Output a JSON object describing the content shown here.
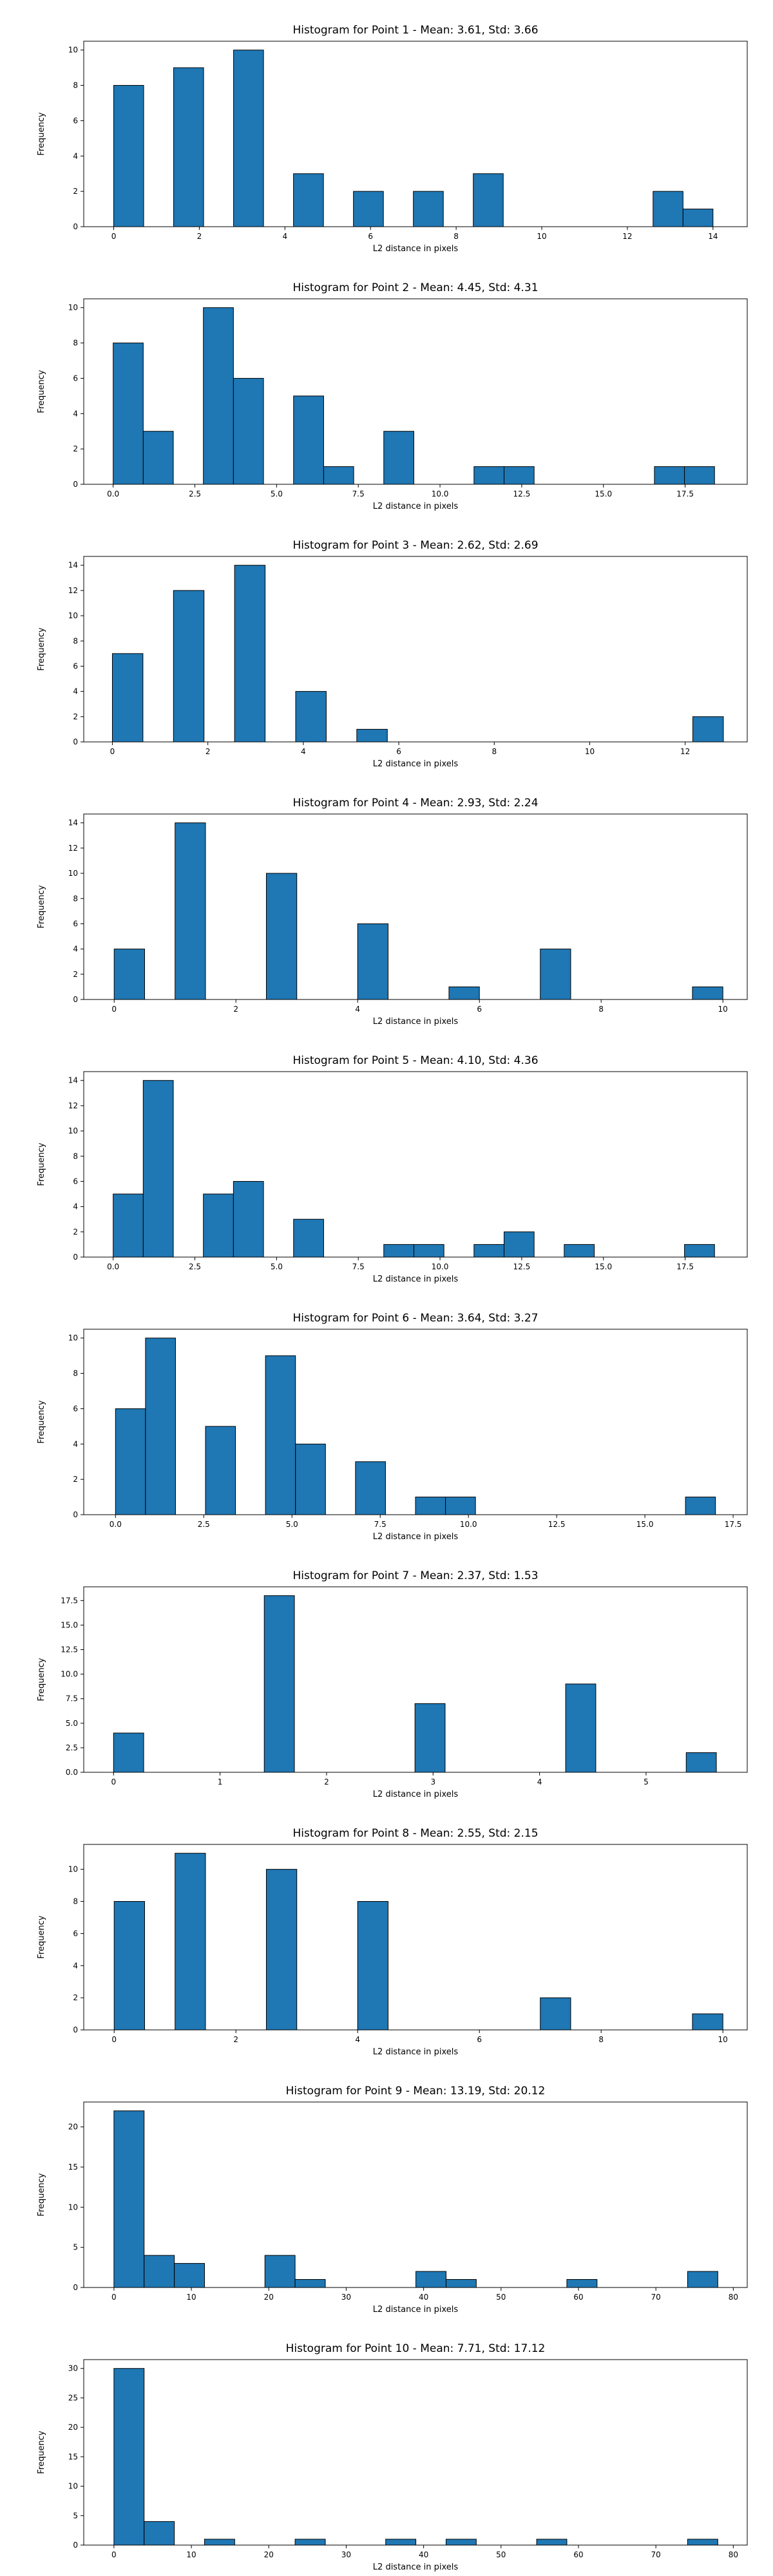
{
  "chart_data": [
    {
      "type": "bar",
      "title": "Histogram for Point 1 - Mean: 3.61, Std: 3.66",
      "xlabel": "L2 distance in pixels",
      "ylabel": "Frequency",
      "xlim": [
        -0.7,
        14.8
      ],
      "ylim": [
        0,
        10.5
      ],
      "xticks": [
        0,
        2,
        4,
        6,
        8,
        10,
        12,
        14
      ],
      "xtick_labels": [
        "0",
        "2",
        "4",
        "6",
        "8",
        "10",
        "12",
        "14"
      ],
      "yticks": [
        0,
        2,
        4,
        6,
        8,
        10
      ],
      "ytick_labels": [
        "0",
        "2",
        "4",
        "6",
        "8",
        "10"
      ],
      "bins": [
        {
          "x0": 0.0,
          "x1": 0.7,
          "count": 8
        },
        {
          "x0": 1.4,
          "x1": 2.1,
          "count": 9
        },
        {
          "x0": 2.8,
          "x1": 3.5,
          "count": 10
        },
        {
          "x0": 4.2,
          "x1": 4.9,
          "count": 3
        },
        {
          "x0": 5.6,
          "x1": 6.3,
          "count": 2
        },
        {
          "x0": 7.0,
          "x1": 7.7,
          "count": 2
        },
        {
          "x0": 8.4,
          "x1": 9.1,
          "count": 3
        },
        {
          "x0": 12.6,
          "x1": 13.3,
          "count": 2
        },
        {
          "x0": 13.3,
          "x1": 14.0,
          "count": 1
        }
      ]
    },
    {
      "type": "bar",
      "title": "Histogram for Point 2 - Mean: 4.45, Std: 4.31",
      "xlabel": "L2 distance in pixels",
      "ylabel": "Frequency",
      "xlim": [
        -0.9,
        19.4
      ],
      "ylim": [
        0,
        10.5
      ],
      "xticks": [
        0,
        2.5,
        5,
        7.5,
        10,
        12.5,
        15,
        17.5
      ],
      "xtick_labels": [
        "0.0",
        "2.5",
        "5.0",
        "7.5",
        "10.0",
        "12.5",
        "15.0",
        "17.5"
      ],
      "yticks": [
        0,
        2,
        4,
        6,
        8,
        10
      ],
      "ytick_labels": [
        "0",
        "2",
        "4",
        "6",
        "8",
        "10"
      ],
      "bins": [
        {
          "x0": 0.0,
          "x1": 0.92,
          "count": 8
        },
        {
          "x0": 0.92,
          "x1": 1.84,
          "count": 3
        },
        {
          "x0": 2.76,
          "x1": 3.68,
          "count": 10
        },
        {
          "x0": 3.68,
          "x1": 4.6,
          "count": 6
        },
        {
          "x0": 5.52,
          "x1": 6.44,
          "count": 5
        },
        {
          "x0": 6.44,
          "x1": 7.36,
          "count": 1
        },
        {
          "x0": 8.28,
          "x1": 9.2,
          "count": 3
        },
        {
          "x0": 11.04,
          "x1": 11.96,
          "count": 1
        },
        {
          "x0": 11.96,
          "x1": 12.88,
          "count": 1
        },
        {
          "x0": 16.56,
          "x1": 17.48,
          "count": 1
        },
        {
          "x0": 17.48,
          "x1": 18.4,
          "count": 1
        }
      ]
    },
    {
      "type": "bar",
      "title": "Histogram for Point 3 - Mean: 2.62, Std: 2.69",
      "xlabel": "L2 distance in pixels",
      "ylabel": "Frequency",
      "xlim": [
        -0.6,
        13.3
      ],
      "ylim": [
        0,
        14.7
      ],
      "xticks": [
        0,
        2,
        4,
        6,
        8,
        10,
        12
      ],
      "xtick_labels": [
        "0",
        "2",
        "4",
        "6",
        "8",
        "10",
        "12"
      ],
      "yticks": [
        0,
        2,
        4,
        6,
        8,
        10,
        12,
        14
      ],
      "ytick_labels": [
        "0",
        "2",
        "4",
        "6",
        "8",
        "10",
        "12",
        "14"
      ],
      "bins": [
        {
          "x0": 0.0,
          "x1": 0.64,
          "count": 7
        },
        {
          "x0": 1.28,
          "x1": 1.92,
          "count": 12
        },
        {
          "x0": 2.56,
          "x1": 3.2,
          "count": 14
        },
        {
          "x0": 3.84,
          "x1": 4.48,
          "count": 4
        },
        {
          "x0": 5.12,
          "x1": 5.76,
          "count": 1
        },
        {
          "x0": 12.16,
          "x1": 12.8,
          "count": 2
        }
      ]
    },
    {
      "type": "bar",
      "title": "Histogram for Point 4 - Mean: 2.93, Std: 2.24",
      "xlabel": "L2 distance in pixels",
      "ylabel": "Frequency",
      "xlim": [
        -0.5,
        10.4
      ],
      "ylim": [
        0,
        14.7
      ],
      "xticks": [
        0,
        2,
        4,
        6,
        8,
        10
      ],
      "xtick_labels": [
        "0",
        "2",
        "4",
        "6",
        "8",
        "10"
      ],
      "yticks": [
        0,
        2,
        4,
        6,
        8,
        10,
        12,
        14
      ],
      "ytick_labels": [
        "0",
        "2",
        "4",
        "6",
        "8",
        "10",
        "12",
        "14"
      ],
      "bins": [
        {
          "x0": 0.0,
          "x1": 0.5,
          "count": 4
        },
        {
          "x0": 1.0,
          "x1": 1.5,
          "count": 14
        },
        {
          "x0": 2.5,
          "x1": 3.0,
          "count": 10
        },
        {
          "x0": 4.0,
          "x1": 4.5,
          "count": 6
        },
        {
          "x0": 5.5,
          "x1": 6.0,
          "count": 1
        },
        {
          "x0": 7.0,
          "x1": 7.5,
          "count": 4
        },
        {
          "x0": 9.5,
          "x1": 10.0,
          "count": 1
        }
      ]
    },
    {
      "type": "bar",
      "title": "Histogram for Point 5 - Mean: 4.10, Std: 4.36",
      "xlabel": "L2 distance in pixels",
      "ylabel": "Frequency",
      "xlim": [
        -0.9,
        19.4
      ],
      "ylim": [
        0,
        14.7
      ],
      "xticks": [
        0,
        2.5,
        5,
        7.5,
        10,
        12.5,
        15,
        17.5
      ],
      "xtick_labels": [
        "0.0",
        "2.5",
        "5.0",
        "7.5",
        "10.0",
        "12.5",
        "15.0",
        "17.5"
      ],
      "yticks": [
        0,
        2,
        4,
        6,
        8,
        10,
        12,
        14
      ],
      "ytick_labels": [
        "0",
        "2",
        "4",
        "6",
        "8",
        "10",
        "12",
        "14"
      ],
      "bins": [
        {
          "x0": 0.0,
          "x1": 0.92,
          "count": 5
        },
        {
          "x0": 0.92,
          "x1": 1.84,
          "count": 14
        },
        {
          "x0": 2.76,
          "x1": 3.68,
          "count": 5
        },
        {
          "x0": 3.68,
          "x1": 4.6,
          "count": 6
        },
        {
          "x0": 5.52,
          "x1": 6.44,
          "count": 3
        },
        {
          "x0": 8.28,
          "x1": 9.2,
          "count": 1
        },
        {
          "x0": 9.2,
          "x1": 10.12,
          "count": 1
        },
        {
          "x0": 11.04,
          "x1": 11.96,
          "count": 1
        },
        {
          "x0": 11.96,
          "x1": 12.88,
          "count": 2
        },
        {
          "x0": 13.8,
          "x1": 14.72,
          "count": 1
        },
        {
          "x0": 17.48,
          "x1": 18.4,
          "count": 1
        }
      ]
    },
    {
      "type": "bar",
      "title": "Histogram for Point 6 - Mean: 3.64, Std: 3.27",
      "xlabel": "L2 distance in pixels",
      "ylabel": "Frequency",
      "xlim": [
        -0.9,
        17.9
      ],
      "ylim": [
        0,
        10.5
      ],
      "xticks": [
        0,
        2.5,
        5,
        7.5,
        10,
        12.5,
        15,
        17.5
      ],
      "xtick_labels": [
        "0.0",
        "2.5",
        "5.0",
        "7.5",
        "10.0",
        "12.5",
        "15.0",
        "17.5"
      ],
      "yticks": [
        0,
        2,
        4,
        6,
        8,
        10
      ],
      "ytick_labels": [
        "0",
        "2",
        "4",
        "6",
        "8",
        "10"
      ],
      "bins": [
        {
          "x0": 0.0,
          "x1": 0.85,
          "count": 6
        },
        {
          "x0": 0.85,
          "x1": 1.7,
          "count": 10
        },
        {
          "x0": 2.55,
          "x1": 3.4,
          "count": 5
        },
        {
          "x0": 4.25,
          "x1": 5.1,
          "count": 9
        },
        {
          "x0": 5.1,
          "x1": 5.95,
          "count": 4
        },
        {
          "x0": 6.8,
          "x1": 7.65,
          "count": 3
        },
        {
          "x0": 8.5,
          "x1": 9.35,
          "count": 1
        },
        {
          "x0": 9.35,
          "x1": 10.2,
          "count": 1
        },
        {
          "x0": 16.15,
          "x1": 17.0,
          "count": 1
        }
      ]
    },
    {
      "type": "bar",
      "title": "Histogram for Point 7 - Mean: 2.37, Std: 1.53",
      "xlabel": "L2 distance in pixels",
      "ylabel": "Frequency",
      "xlim": [
        -0.28,
        5.95
      ],
      "ylim": [
        0,
        18.9
      ],
      "xticks": [
        0,
        1,
        2,
        3,
        4,
        5
      ],
      "xtick_labels": [
        "0",
        "1",
        "2",
        "3",
        "4",
        "5"
      ],
      "yticks": [
        0,
        2.5,
        5,
        7.5,
        10,
        12.5,
        15,
        17.5
      ],
      "ytick_labels": [
        "0.0",
        "2.5",
        "5.0",
        "7.5",
        "10.0",
        "12.5",
        "15.0",
        "17.5"
      ],
      "bins": [
        {
          "x0": 0.0,
          "x1": 0.283,
          "count": 4
        },
        {
          "x0": 1.415,
          "x1": 1.698,
          "count": 18
        },
        {
          "x0": 2.83,
          "x1": 3.113,
          "count": 7
        },
        {
          "x0": 4.245,
          "x1": 4.528,
          "count": 9
        },
        {
          "x0": 5.377,
          "x1": 5.66,
          "count": 2
        }
      ]
    },
    {
      "type": "bar",
      "title": "Histogram for Point 8 - Mean: 2.55, Std: 2.15",
      "xlabel": "L2 distance in pixels",
      "ylabel": "Frequency",
      "xlim": [
        -0.5,
        10.4
      ],
      "ylim": [
        0,
        11.55
      ],
      "xticks": [
        0,
        2,
        4,
        6,
        8,
        10
      ],
      "xtick_labels": [
        "0",
        "2",
        "4",
        "6",
        "8",
        "10"
      ],
      "yticks": [
        0,
        2,
        4,
        6,
        8,
        10
      ],
      "ytick_labels": [
        "0",
        "2",
        "4",
        "6",
        "8",
        "10"
      ],
      "bins": [
        {
          "x0": 0.0,
          "x1": 0.5,
          "count": 8
        },
        {
          "x0": 1.0,
          "x1": 1.5,
          "count": 11
        },
        {
          "x0": 2.5,
          "x1": 3.0,
          "count": 10
        },
        {
          "x0": 4.0,
          "x1": 4.5,
          "count": 8
        },
        {
          "x0": 7.0,
          "x1": 7.5,
          "count": 2
        },
        {
          "x0": 9.5,
          "x1": 10.0,
          "count": 1
        }
      ]
    },
    {
      "type": "bar",
      "title": "Histogram for Point 9 - Mean: 13.19, Std: 20.12",
      "xlabel": "L2 distance in pixels",
      "ylabel": "Frequency",
      "xlim": [
        -3.9,
        81.8
      ],
      "ylim": [
        0,
        23.1
      ],
      "xticks": [
        0,
        10,
        20,
        30,
        40,
        50,
        60,
        70,
        80
      ],
      "xtick_labels": [
        "0",
        "10",
        "20",
        "30",
        "40",
        "50",
        "60",
        "70",
        "80"
      ],
      "yticks": [
        0,
        5,
        10,
        15,
        20
      ],
      "ytick_labels": [
        "0",
        "5",
        "10",
        "15",
        "20"
      ],
      "bins": [
        {
          "x0": 0.0,
          "x1": 3.9,
          "count": 22
        },
        {
          "x0": 3.9,
          "x1": 7.8,
          "count": 4
        },
        {
          "x0": 7.8,
          "x1": 11.7,
          "count": 3
        },
        {
          "x0": 19.5,
          "x1": 23.4,
          "count": 4
        },
        {
          "x0": 23.4,
          "x1": 27.3,
          "count": 1
        },
        {
          "x0": 39.0,
          "x1": 42.9,
          "count": 2
        },
        {
          "x0": 42.9,
          "x1": 46.8,
          "count": 1
        },
        {
          "x0": 58.5,
          "x1": 62.4,
          "count": 1
        },
        {
          "x0": 74.1,
          "x1": 78.0,
          "count": 2
        }
      ]
    },
    {
      "type": "bar",
      "title": "Histogram for Point 10 - Mean: 7.71, Std: 17.12",
      "xlabel": "L2 distance in pixels",
      "ylabel": "Frequency",
      "xlim": [
        -3.9,
        81.8
      ],
      "ylim": [
        0,
        31.5
      ],
      "xticks": [
        0,
        10,
        20,
        30,
        40,
        50,
        60,
        70,
        80
      ],
      "xtick_labels": [
        "0",
        "10",
        "20",
        "30",
        "40",
        "50",
        "60",
        "70",
        "80"
      ],
      "yticks": [
        0,
        5,
        10,
        15,
        20,
        25,
        30
      ],
      "ytick_labels": [
        "0",
        "5",
        "10",
        "15",
        "20",
        "25",
        "30"
      ],
      "bins": [
        {
          "x0": 0.0,
          "x1": 3.9,
          "count": 30
        },
        {
          "x0": 3.9,
          "x1": 7.8,
          "count": 4
        },
        {
          "x0": 11.7,
          "x1": 15.6,
          "count": 1
        },
        {
          "x0": 23.4,
          "x1": 27.3,
          "count": 1
        },
        {
          "x0": 35.1,
          "x1": 39.0,
          "count": 1
        },
        {
          "x0": 42.9,
          "x1": 46.8,
          "count": 1
        },
        {
          "x0": 54.6,
          "x1": 58.5,
          "count": 1
        },
        {
          "x0": 74.1,
          "x1": 78.0,
          "count": 1
        }
      ]
    }
  ]
}
